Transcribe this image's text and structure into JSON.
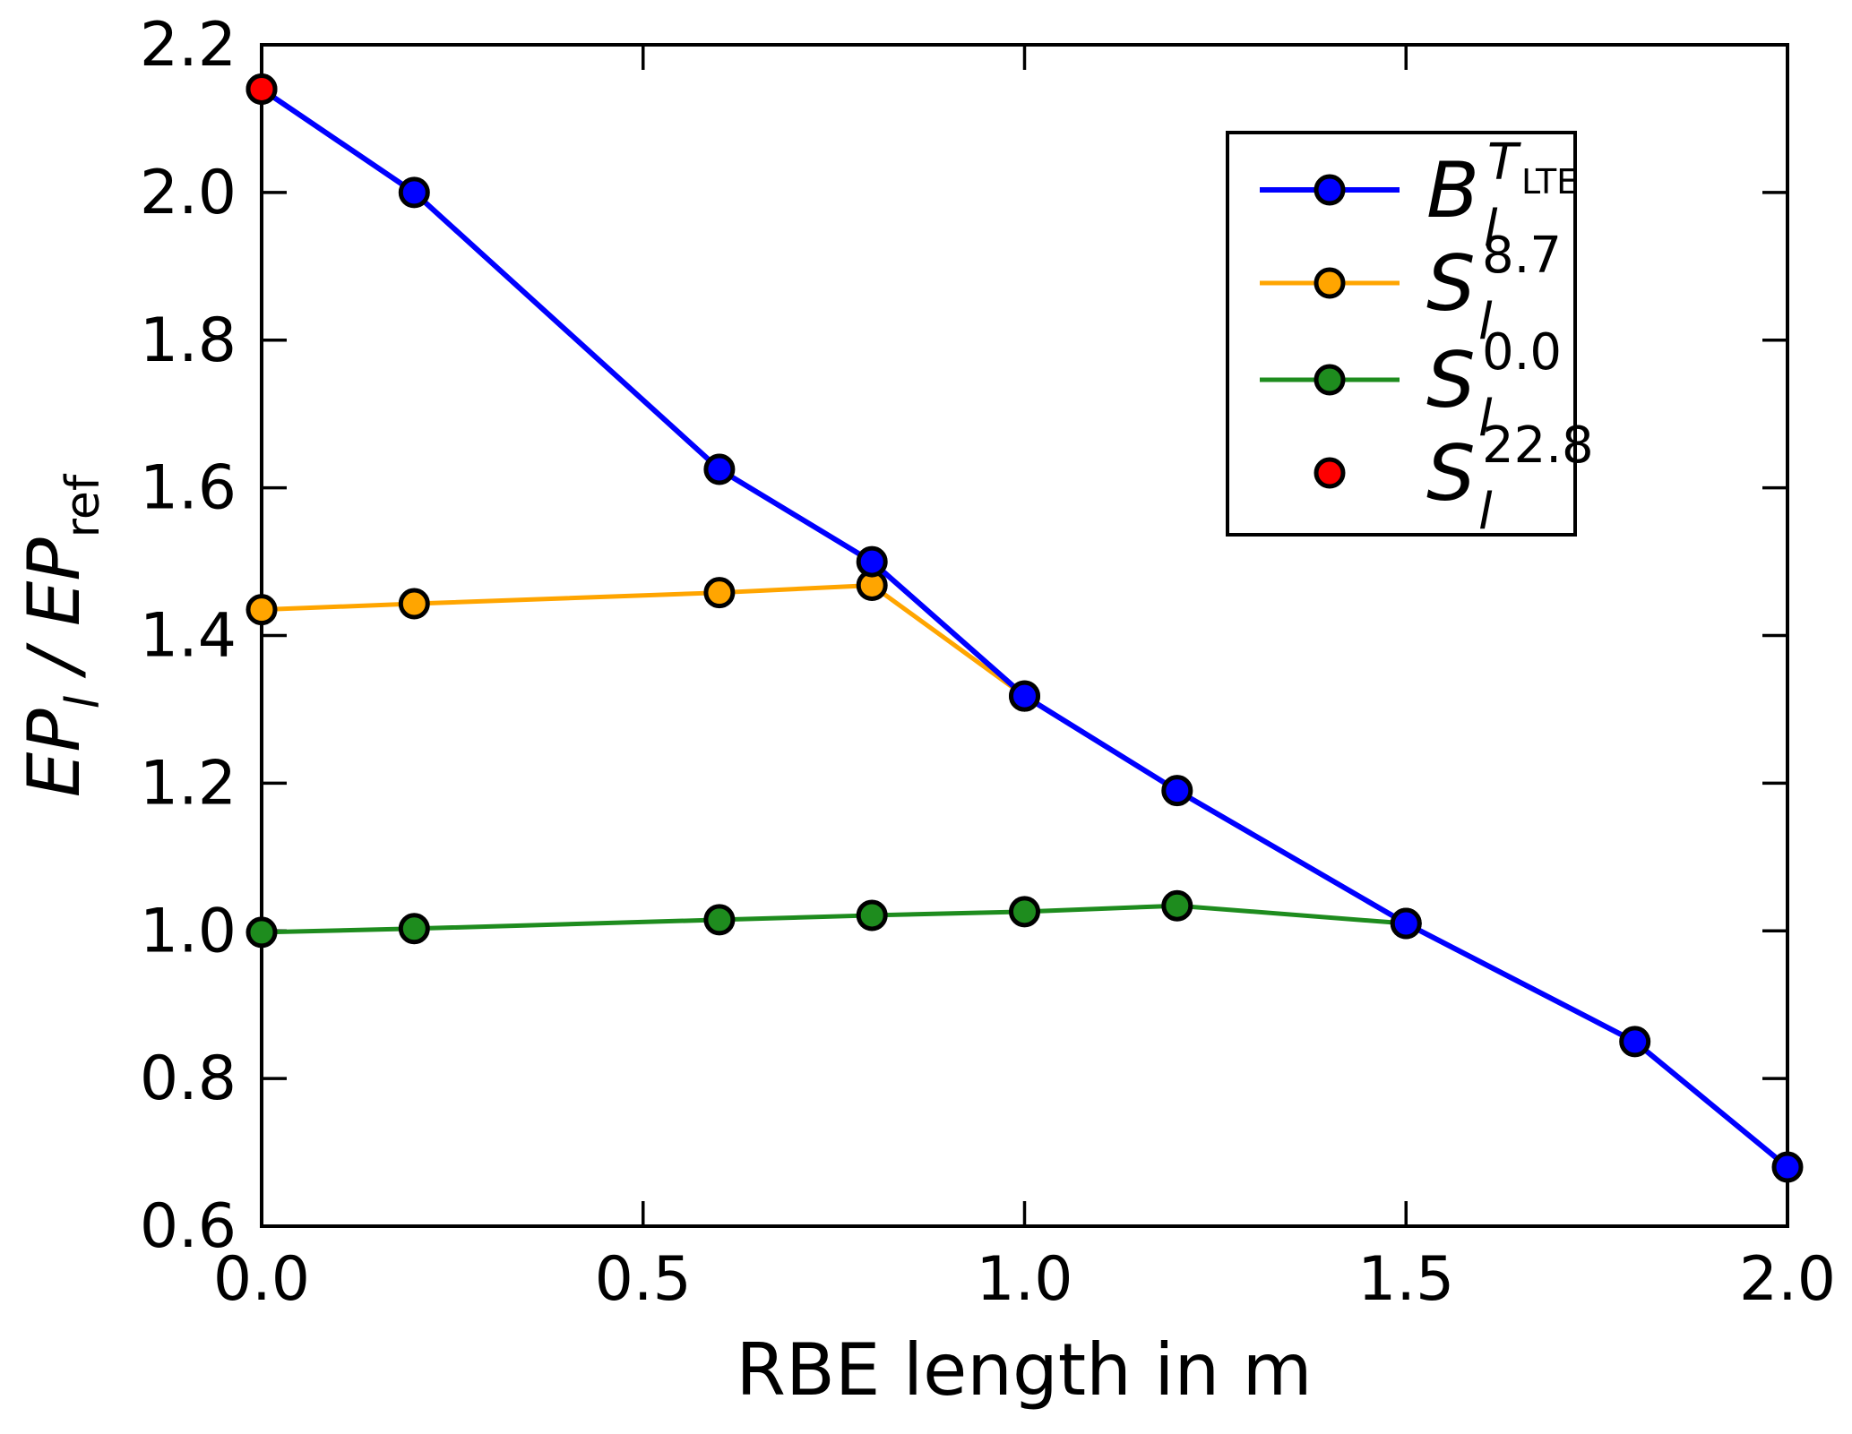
{
  "figure": {
    "background": "#ffffff"
  },
  "chart_data": {
    "type": "line",
    "title": "",
    "xlabel": "RBE length in m",
    "ylabel": "EP_l / EP_ref",
    "ylabel_segments": [
      {
        "t": "EP",
        "italic": true
      },
      {
        "t": "l",
        "italic": true,
        "script": "sub"
      },
      {
        "t": " / ",
        "italic": true
      },
      {
        "t": "EP",
        "italic": true
      },
      {
        "t": "ref",
        "script": "sub"
      }
    ],
    "xlim": [
      0.0,
      2.0
    ],
    "ylim": [
      0.6,
      2.2
    ],
    "grid": false,
    "xticks": {
      "values": [
        0.0,
        0.5,
        1.0,
        1.5,
        2.0
      ],
      "labels": [
        "0.0",
        "0.5",
        "1.0",
        "1.5",
        "2.0"
      ]
    },
    "yticks": {
      "values": [
        0.6,
        0.8,
        1.0,
        1.2,
        1.4,
        1.6,
        1.8,
        2.0,
        2.2
      ],
      "labels": [
        "0.6",
        "0.8",
        "1.0",
        "1.2",
        "1.4",
        "1.6",
        "1.8",
        "2.0",
        "2.2"
      ]
    },
    "legend": {
      "position": "upper right",
      "border_color": "#000000",
      "background": "#ffffff"
    },
    "marker": {
      "shape": "circle",
      "edge_color": "#000000"
    },
    "draw_order": [
      1,
      2,
      0,
      3
    ],
    "series": [
      {
        "id": "B-TLTE",
        "label": {
          "base": "B",
          "sub": "l",
          "sup": "T",
          "sup_italic": true,
          "sup_sub": "LTE"
        },
        "color": "#0000ff",
        "line": true,
        "lw": 6,
        "x": [
          0.0,
          0.2,
          0.6,
          0.8,
          1.0,
          1.2,
          1.5,
          1.8,
          2.0
        ],
        "y": [
          2.14,
          2.0,
          1.625,
          1.5,
          1.318,
          1.19,
          1.01,
          0.85,
          0.68
        ]
      },
      {
        "id": "S-8.7",
        "label": {
          "base": "S",
          "sub": "l",
          "sup": "8.7"
        },
        "color": "#ffa500",
        "line": true,
        "lw": 5,
        "x": [
          0.0,
          0.2,
          0.6,
          0.8,
          1.0
        ],
        "y": [
          1.435,
          1.443,
          1.458,
          1.468,
          1.318
        ]
      },
      {
        "id": "S-0.0",
        "label": {
          "base": "S",
          "sub": "l",
          "sup": "0.0"
        },
        "color": "#1e8c1e",
        "line": true,
        "lw": 5,
        "x": [
          0.0,
          0.2,
          0.6,
          0.8,
          1.0,
          1.2,
          1.5
        ],
        "y": [
          0.998,
          1.003,
          1.015,
          1.021,
          1.026,
          1.034,
          1.01
        ]
      },
      {
        "id": "S-22.8",
        "label": {
          "base": "S",
          "sub": "l",
          "sup": "22.8"
        },
        "color": "#ff0000",
        "line": false,
        "lw": 0,
        "x": [
          0.0
        ],
        "y": [
          2.14
        ]
      }
    ]
  }
}
